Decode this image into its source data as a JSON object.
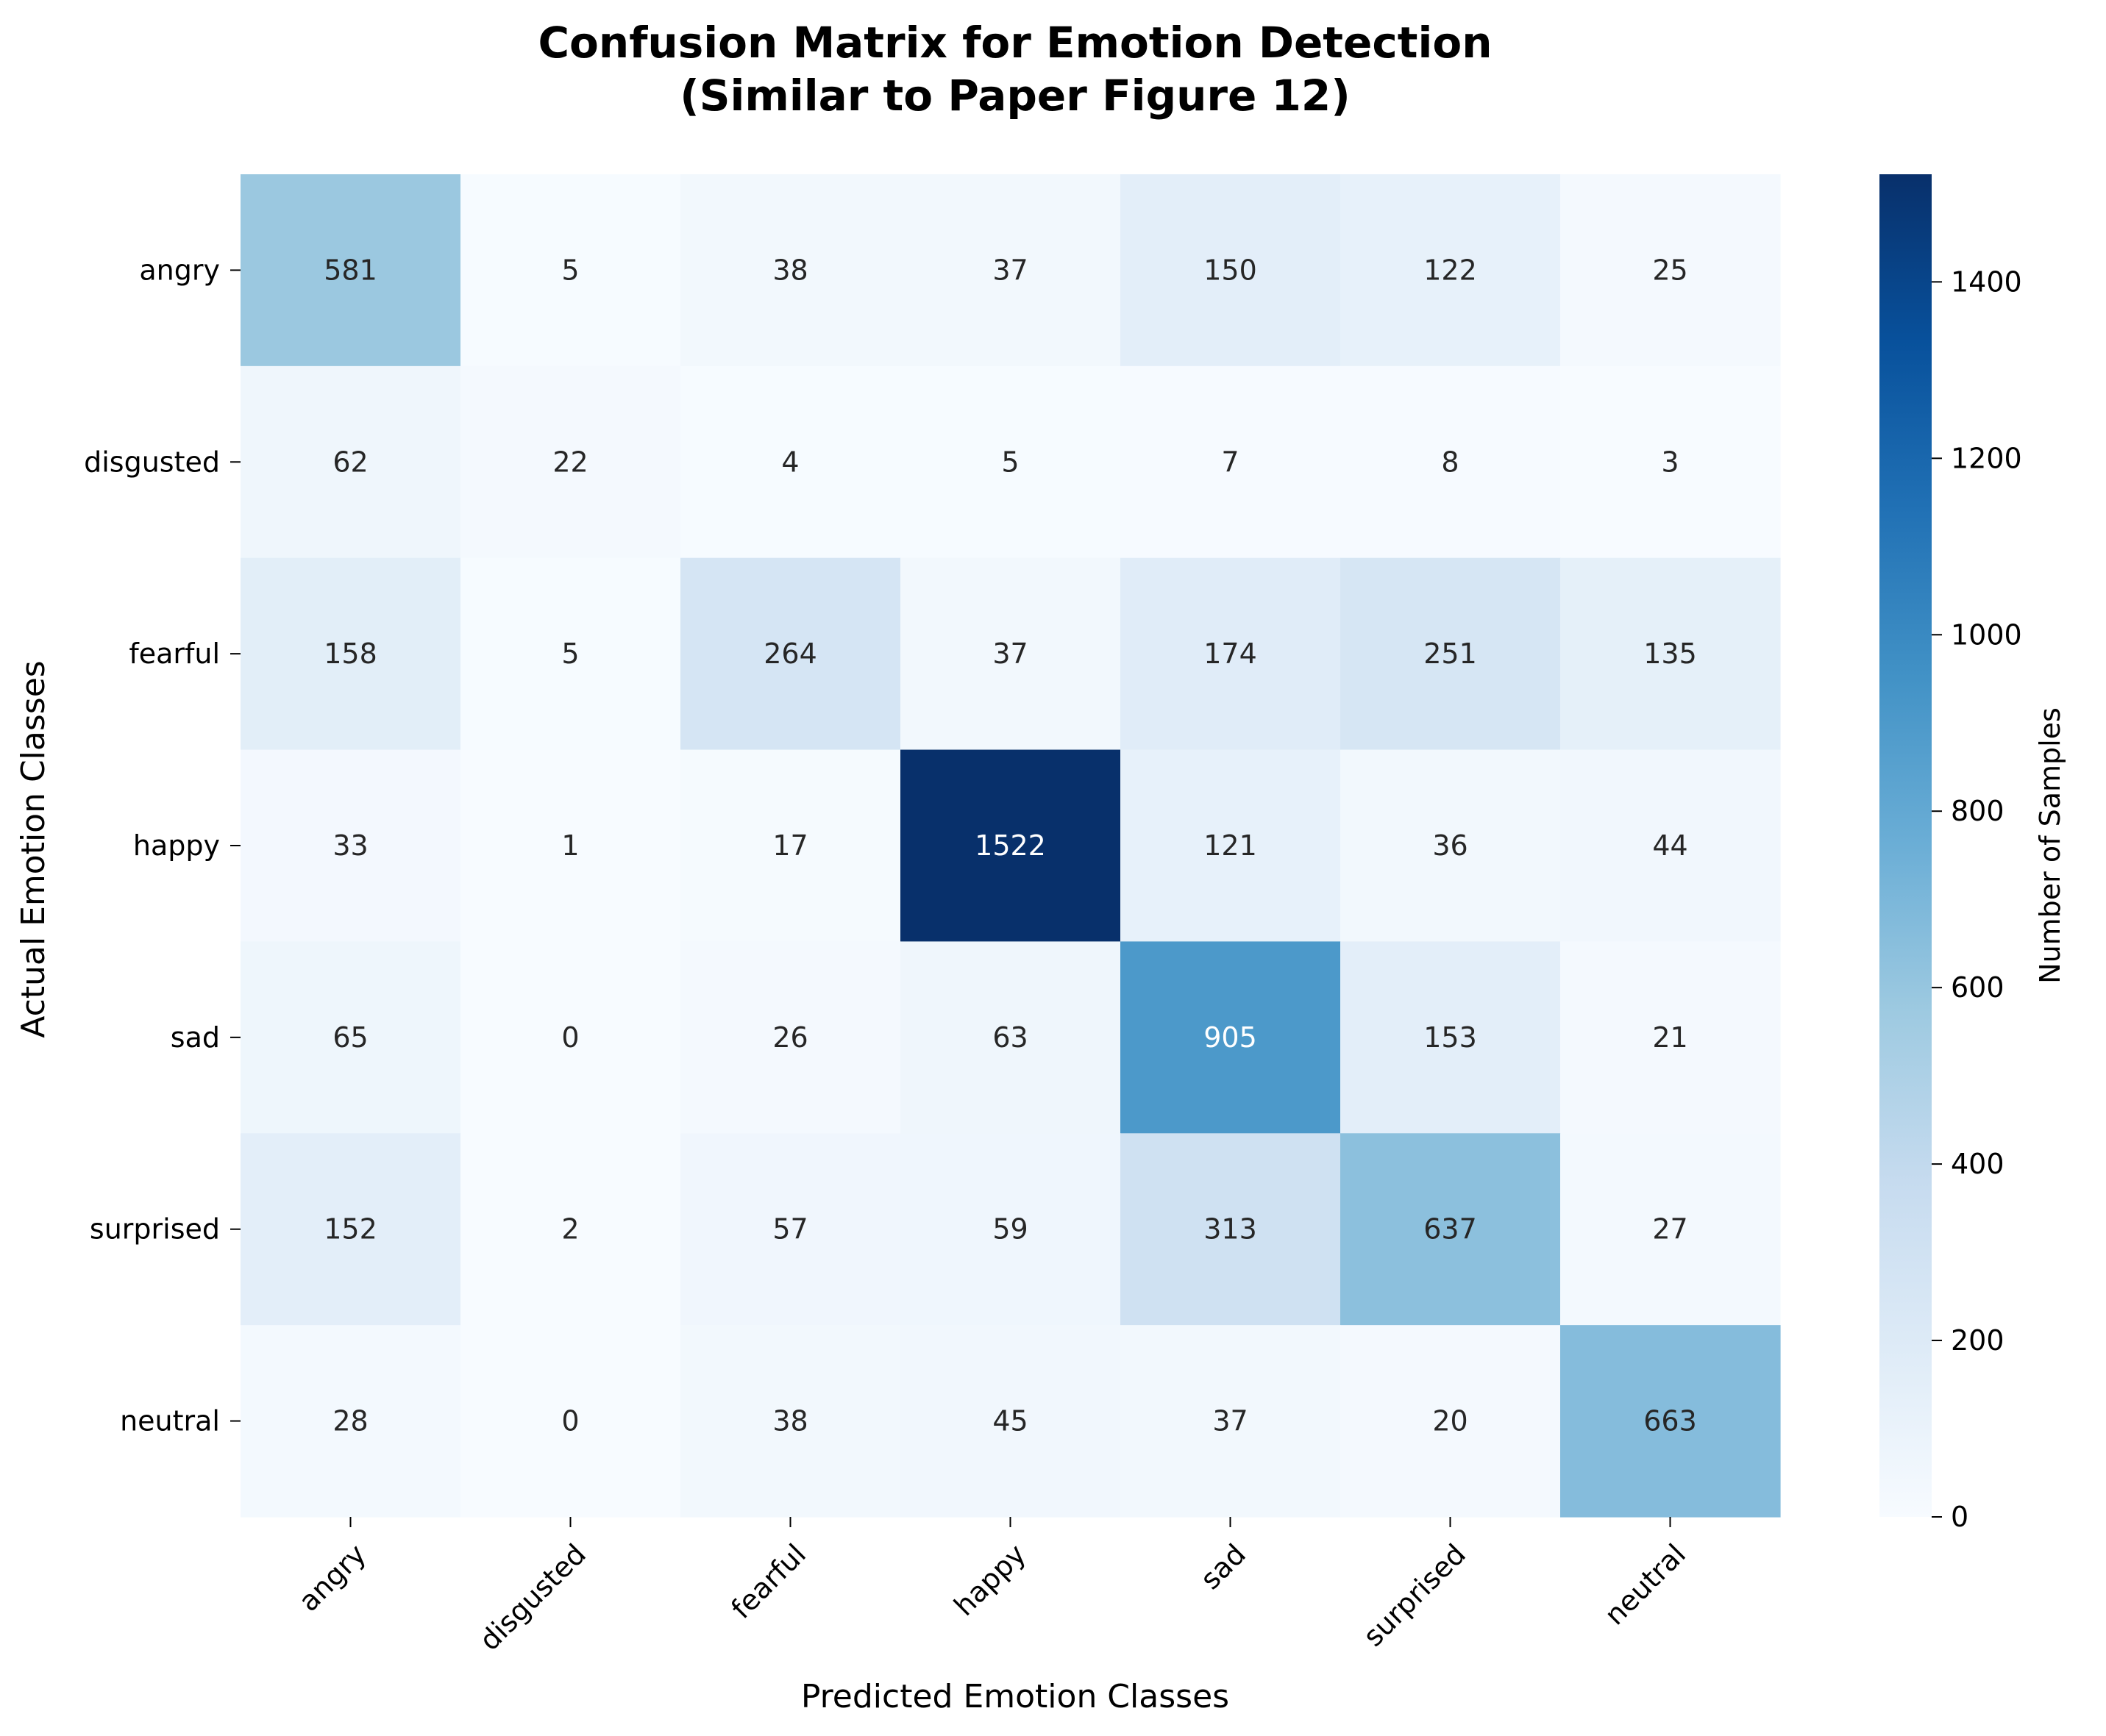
{
  "chart_data": {
    "type": "heatmap",
    "title_line1": "Confusion Matrix for Emotion Detection",
    "title_line2": "(Similar to Paper Figure 12)",
    "xlabel": "Predicted Emotion Classes",
    "ylabel": "Actual Emotion Classes",
    "x_categories": [
      "angry",
      "disgusted",
      "fearful",
      "happy",
      "sad",
      "surprised",
      "neutral"
    ],
    "y_categories": [
      "angry",
      "disgusted",
      "fearful",
      "happy",
      "sad",
      "surprised",
      "neutral"
    ],
    "values": [
      [
        581,
        5,
        38,
        37,
        150,
        122,
        25
      ],
      [
        62,
        22,
        4,
        5,
        7,
        8,
        3
      ],
      [
        158,
        5,
        264,
        37,
        174,
        251,
        135
      ],
      [
        33,
        1,
        17,
        1522,
        121,
        36,
        44
      ],
      [
        65,
        0,
        26,
        63,
        905,
        153,
        21
      ],
      [
        152,
        2,
        57,
        59,
        313,
        637,
        27
      ],
      [
        28,
        0,
        38,
        45,
        37,
        20,
        663
      ]
    ],
    "colormap": "Blues",
    "vmin": 0,
    "vmax": 1522,
    "colorbar": {
      "label": "Number of Samples",
      "ticks": [
        0,
        200,
        400,
        600,
        800,
        1000,
        1200,
        1400
      ]
    }
  }
}
